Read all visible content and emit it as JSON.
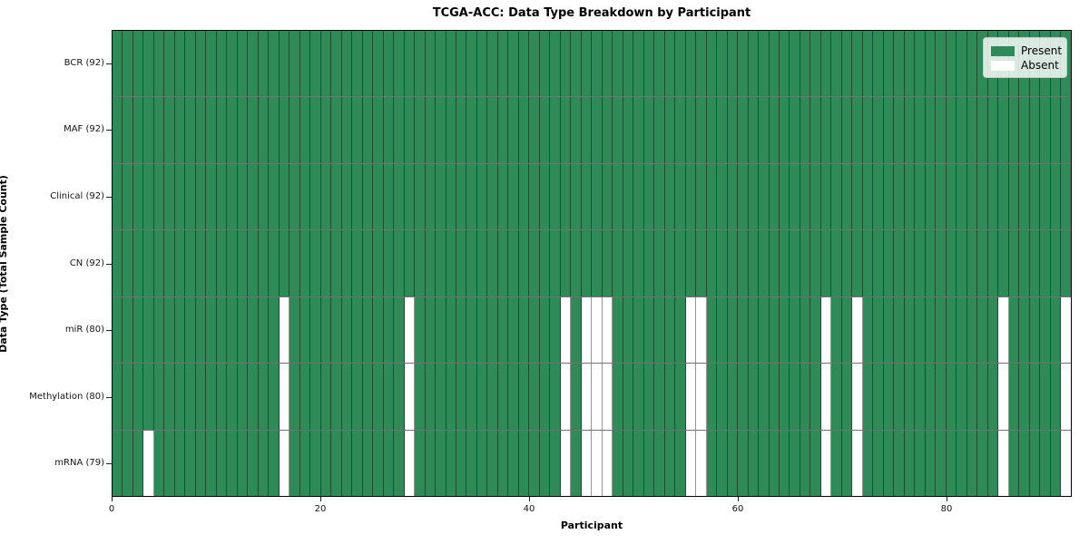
{
  "chart_data": {
    "type": "heatmap",
    "title": "TCGA-ACC: Data Type Breakdown by Participant",
    "xlabel": "Participant",
    "ylabel": "Data Type (Total Sample Count)",
    "x_ticks": [
      0,
      20,
      40,
      60,
      80
    ],
    "x_range": [
      0,
      92
    ],
    "n_participants": 92,
    "grid": "cell-edges",
    "legend_position": "upper-right",
    "rows": [
      {
        "label": "BCR (92)",
        "present_count": 92,
        "absent_participants": []
      },
      {
        "label": "MAF (92)",
        "present_count": 92,
        "absent_participants": []
      },
      {
        "label": "Clinical (92)",
        "present_count": 92,
        "absent_participants": []
      },
      {
        "label": "CN (92)",
        "present_count": 92,
        "absent_participants": []
      },
      {
        "label": "miR (80)",
        "present_count": 80,
        "absent_participants": [
          16,
          28,
          43,
          45,
          46,
          47,
          55,
          56,
          68,
          71,
          85,
          91
        ]
      },
      {
        "label": "Methylation (80)",
        "present_count": 80,
        "absent_participants": [
          16,
          28,
          43,
          45,
          46,
          47,
          55,
          56,
          68,
          71,
          85,
          91
        ]
      },
      {
        "label": "mRNA (79)",
        "present_count": 79,
        "absent_participants": [
          3,
          16,
          28,
          43,
          45,
          46,
          47,
          55,
          56,
          68,
          71,
          85,
          91
        ]
      }
    ],
    "legend": [
      {
        "label": "Present",
        "color": "#2e8b57"
      },
      {
        "label": "Absent",
        "color": "#ffffff"
      }
    ],
    "colors": {
      "present": "#2e8b57",
      "absent": "#ffffff",
      "plot_border": "#000000",
      "cell_edge": "#2a2a2a",
      "row_divider": "#444444"
    }
  }
}
